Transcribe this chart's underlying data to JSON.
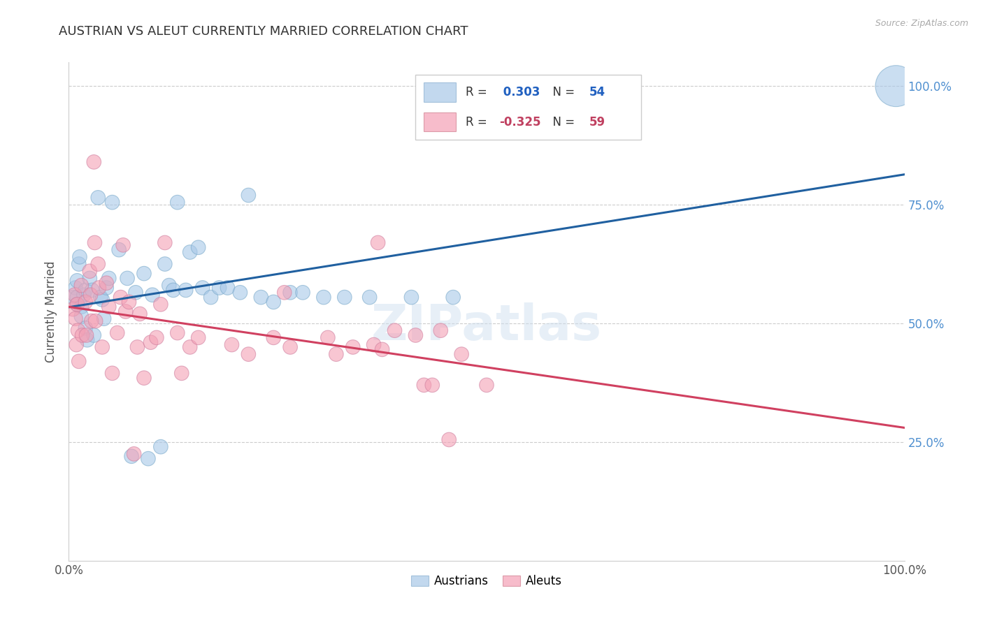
{
  "title": "AUSTRIAN VS ALEUT CURRENTLY MARRIED CORRELATION CHART",
  "source": "Source: ZipAtlas.com",
  "ylabel": "Currently Married",
  "watermark": "ZIPatlas",
  "blue_color": "#a8c8e8",
  "pink_color": "#f4a0b5",
  "blue_line_color": "#2060a0",
  "pink_line_color": "#d04060",
  "background_color": "#ffffff",
  "grid_color": "#cccccc",
  "legend_r_blue": "0.303",
  "legend_n_blue": "54",
  "legend_r_pink": "-0.325",
  "legend_n_pink": "59",
  "austrians_x": [
    0.005,
    0.008,
    0.01,
    0.01,
    0.01,
    0.012,
    0.013,
    0.015,
    0.015,
    0.018,
    0.02,
    0.02,
    0.022,
    0.025,
    0.028,
    0.03,
    0.035,
    0.038,
    0.04,
    0.042,
    0.045,
    0.048,
    0.052,
    0.06,
    0.07,
    0.075,
    0.08,
    0.09,
    0.095,
    0.1,
    0.11,
    0.115,
    0.12,
    0.125,
    0.13,
    0.14,
    0.145,
    0.155,
    0.16,
    0.17,
    0.18,
    0.19,
    0.205,
    0.215,
    0.23,
    0.245,
    0.265,
    0.28,
    0.305,
    0.33,
    0.36,
    0.41,
    0.46,
    0.99
  ],
  "austrians_y": [
    0.555,
    0.575,
    0.59,
    0.555,
    0.54,
    0.625,
    0.64,
    0.535,
    0.515,
    0.56,
    0.57,
    0.49,
    0.465,
    0.595,
    0.57,
    0.475,
    0.765,
    0.555,
    0.55,
    0.51,
    0.575,
    0.595,
    0.755,
    0.655,
    0.595,
    0.22,
    0.565,
    0.605,
    0.215,
    0.56,
    0.24,
    0.625,
    0.58,
    0.57,
    0.755,
    0.57,
    0.65,
    0.66,
    0.575,
    0.555,
    0.575,
    0.575,
    0.565,
    0.77,
    0.555,
    0.545,
    0.565,
    0.565,
    0.555,
    0.555,
    0.555,
    0.555,
    0.555,
    1.0
  ],
  "austrians_large": [
    false,
    false,
    false,
    false,
    false,
    false,
    false,
    false,
    false,
    false,
    false,
    false,
    false,
    false,
    false,
    false,
    false,
    false,
    false,
    false,
    false,
    false,
    false,
    false,
    false,
    false,
    false,
    false,
    false,
    false,
    false,
    false,
    false,
    false,
    false,
    false,
    false,
    false,
    false,
    false,
    false,
    false,
    false,
    false,
    false,
    false,
    false,
    false,
    false,
    false,
    false,
    false,
    false,
    true
  ],
  "aleuts_x": [
    0.005,
    0.007,
    0.008,
    0.009,
    0.01,
    0.011,
    0.012,
    0.015,
    0.016,
    0.02,
    0.021,
    0.025,
    0.026,
    0.027,
    0.03,
    0.031,
    0.032,
    0.035,
    0.036,
    0.04,
    0.045,
    0.048,
    0.052,
    0.058,
    0.062,
    0.065,
    0.068,
    0.072,
    0.078,
    0.082,
    0.085,
    0.09,
    0.098,
    0.105,
    0.11,
    0.115,
    0.13,
    0.135,
    0.145,
    0.155,
    0.195,
    0.215,
    0.245,
    0.258,
    0.265,
    0.31,
    0.32,
    0.34,
    0.365,
    0.37,
    0.375,
    0.39,
    0.415,
    0.425,
    0.435,
    0.445,
    0.455,
    0.47,
    0.5
  ],
  "aleuts_y": [
    0.53,
    0.56,
    0.51,
    0.455,
    0.54,
    0.485,
    0.42,
    0.58,
    0.475,
    0.545,
    0.475,
    0.61,
    0.56,
    0.505,
    0.84,
    0.67,
    0.505,
    0.625,
    0.575,
    0.45,
    0.585,
    0.535,
    0.395,
    0.48,
    0.555,
    0.665,
    0.525,
    0.545,
    0.225,
    0.45,
    0.52,
    0.385,
    0.46,
    0.47,
    0.54,
    0.67,
    0.48,
    0.395,
    0.45,
    0.47,
    0.455,
    0.435,
    0.47,
    0.565,
    0.45,
    0.47,
    0.435,
    0.45,
    0.455,
    0.67,
    0.445,
    0.485,
    0.475,
    0.37,
    0.37,
    0.485,
    0.255,
    0.435,
    0.37
  ],
  "xlim": [
    0.0,
    1.0
  ],
  "ylim": [
    0.0,
    1.05
  ],
  "yticks": [
    0.25,
    0.5,
    0.75,
    1.0
  ],
  "ytick_labels_right": [
    "25.0%",
    "50.0%",
    "75.0%",
    "100.0%"
  ],
  "xtick_positions": [
    0.0,
    0.5,
    1.0
  ],
  "bottom_legend_labels": [
    "Austrians",
    "Aleuts"
  ]
}
